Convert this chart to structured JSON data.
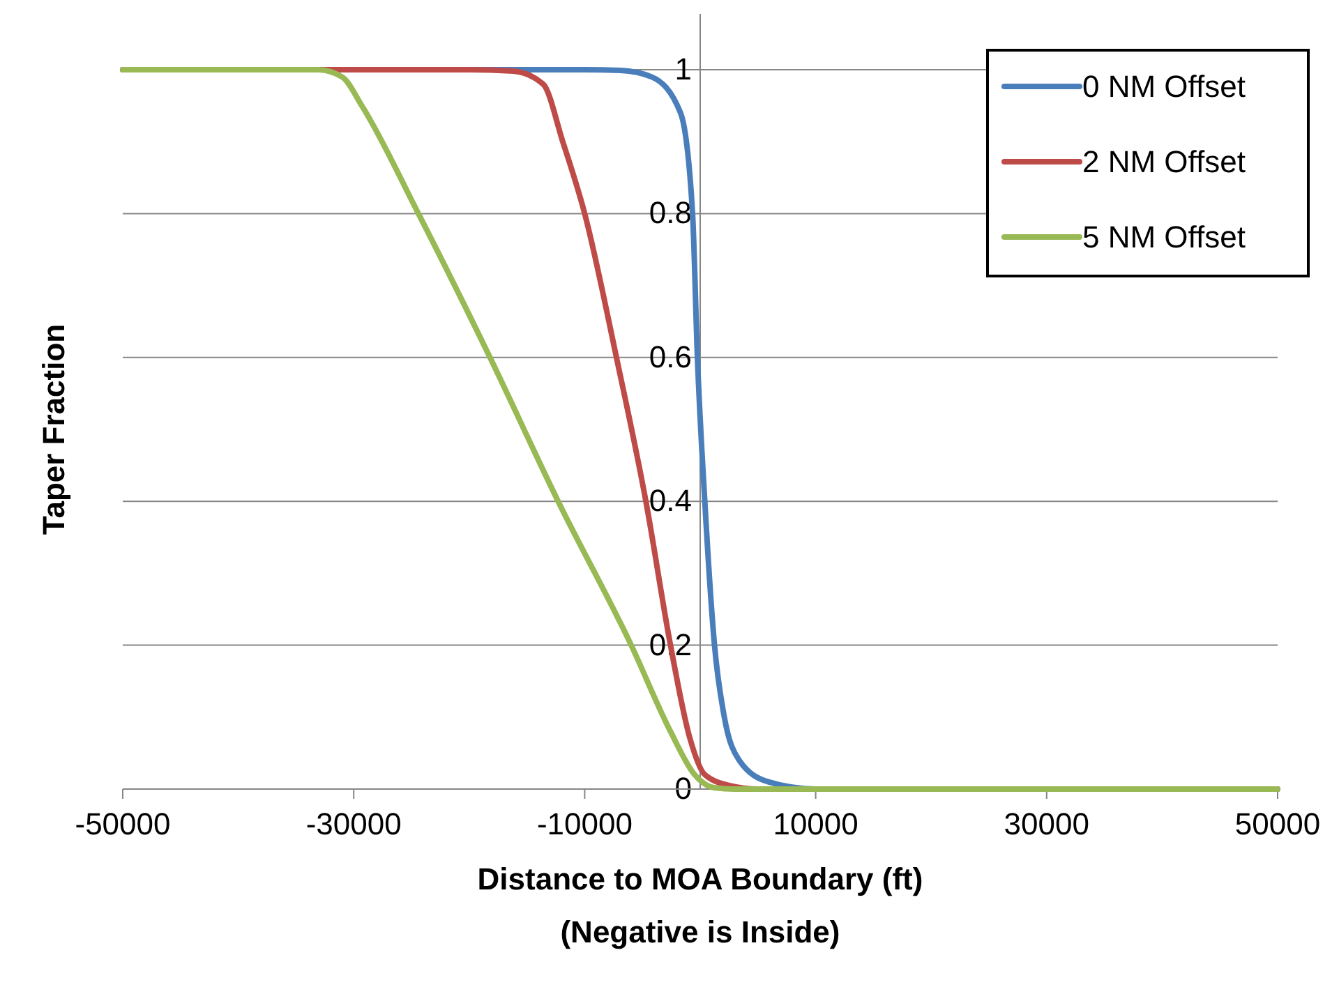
{
  "chart_data": {
    "type": "line",
    "xlabel": "Distance to MOA Boundary (ft)\n(Negative is Inside)",
    "ylabel": "Taper Fraction",
    "xlim": [
      -50000,
      50000
    ],
    "xticks": [
      -50000,
      -30000,
      -10000,
      10000,
      30000,
      50000
    ],
    "ylim": [
      0,
      1
    ],
    "yticks": [
      0,
      0.2,
      0.4,
      0.6,
      0.8,
      1
    ],
    "grid": "y",
    "legend": "top right",
    "marker": "none",
    "line_style": "solid",
    "series": [
      {
        "name": "0 NM Offset",
        "color": "#4a7ebb",
        "x": [
          -50000,
          -10000,
          -6900,
          -4200,
          -1700,
          -660,
          -240,
          400,
          1240,
          2090,
          3380,
          5900,
          10000,
          50000
        ],
        "values": [
          1,
          1,
          0.999,
          0.99,
          0.94,
          0.8,
          0.6,
          0.4,
          0.2,
          0.1,
          0.04,
          0.01,
          0,
          0
        ]
      },
      {
        "name": "2 NM Offset",
        "color": "#be4b48",
        "x": [
          -50000,
          -20000,
          -16200,
          -13600,
          -11900,
          -10000,
          -7250,
          -4700,
          -2570,
          -880,
          400,
          2540,
          5000,
          50000
        ],
        "values": [
          1,
          1,
          0.998,
          0.98,
          0.9,
          0.8,
          0.6,
          0.4,
          0.2,
          0.07,
          0.02,
          0.005,
          0,
          0
        ]
      },
      {
        "name": "5 NM Offset",
        "color": "#98b954",
        "x": [
          -50000,
          -33100,
          -31000,
          -29300,
          -24400,
          -18200,
          -12300,
          -5970,
          -2570,
          -480,
          1200,
          3000,
          50000
        ],
        "values": [
          1,
          1,
          0.99,
          0.95,
          0.8,
          0.6,
          0.4,
          0.2,
          0.08,
          0.02,
          0.002,
          0,
          0
        ]
      }
    ]
  }
}
